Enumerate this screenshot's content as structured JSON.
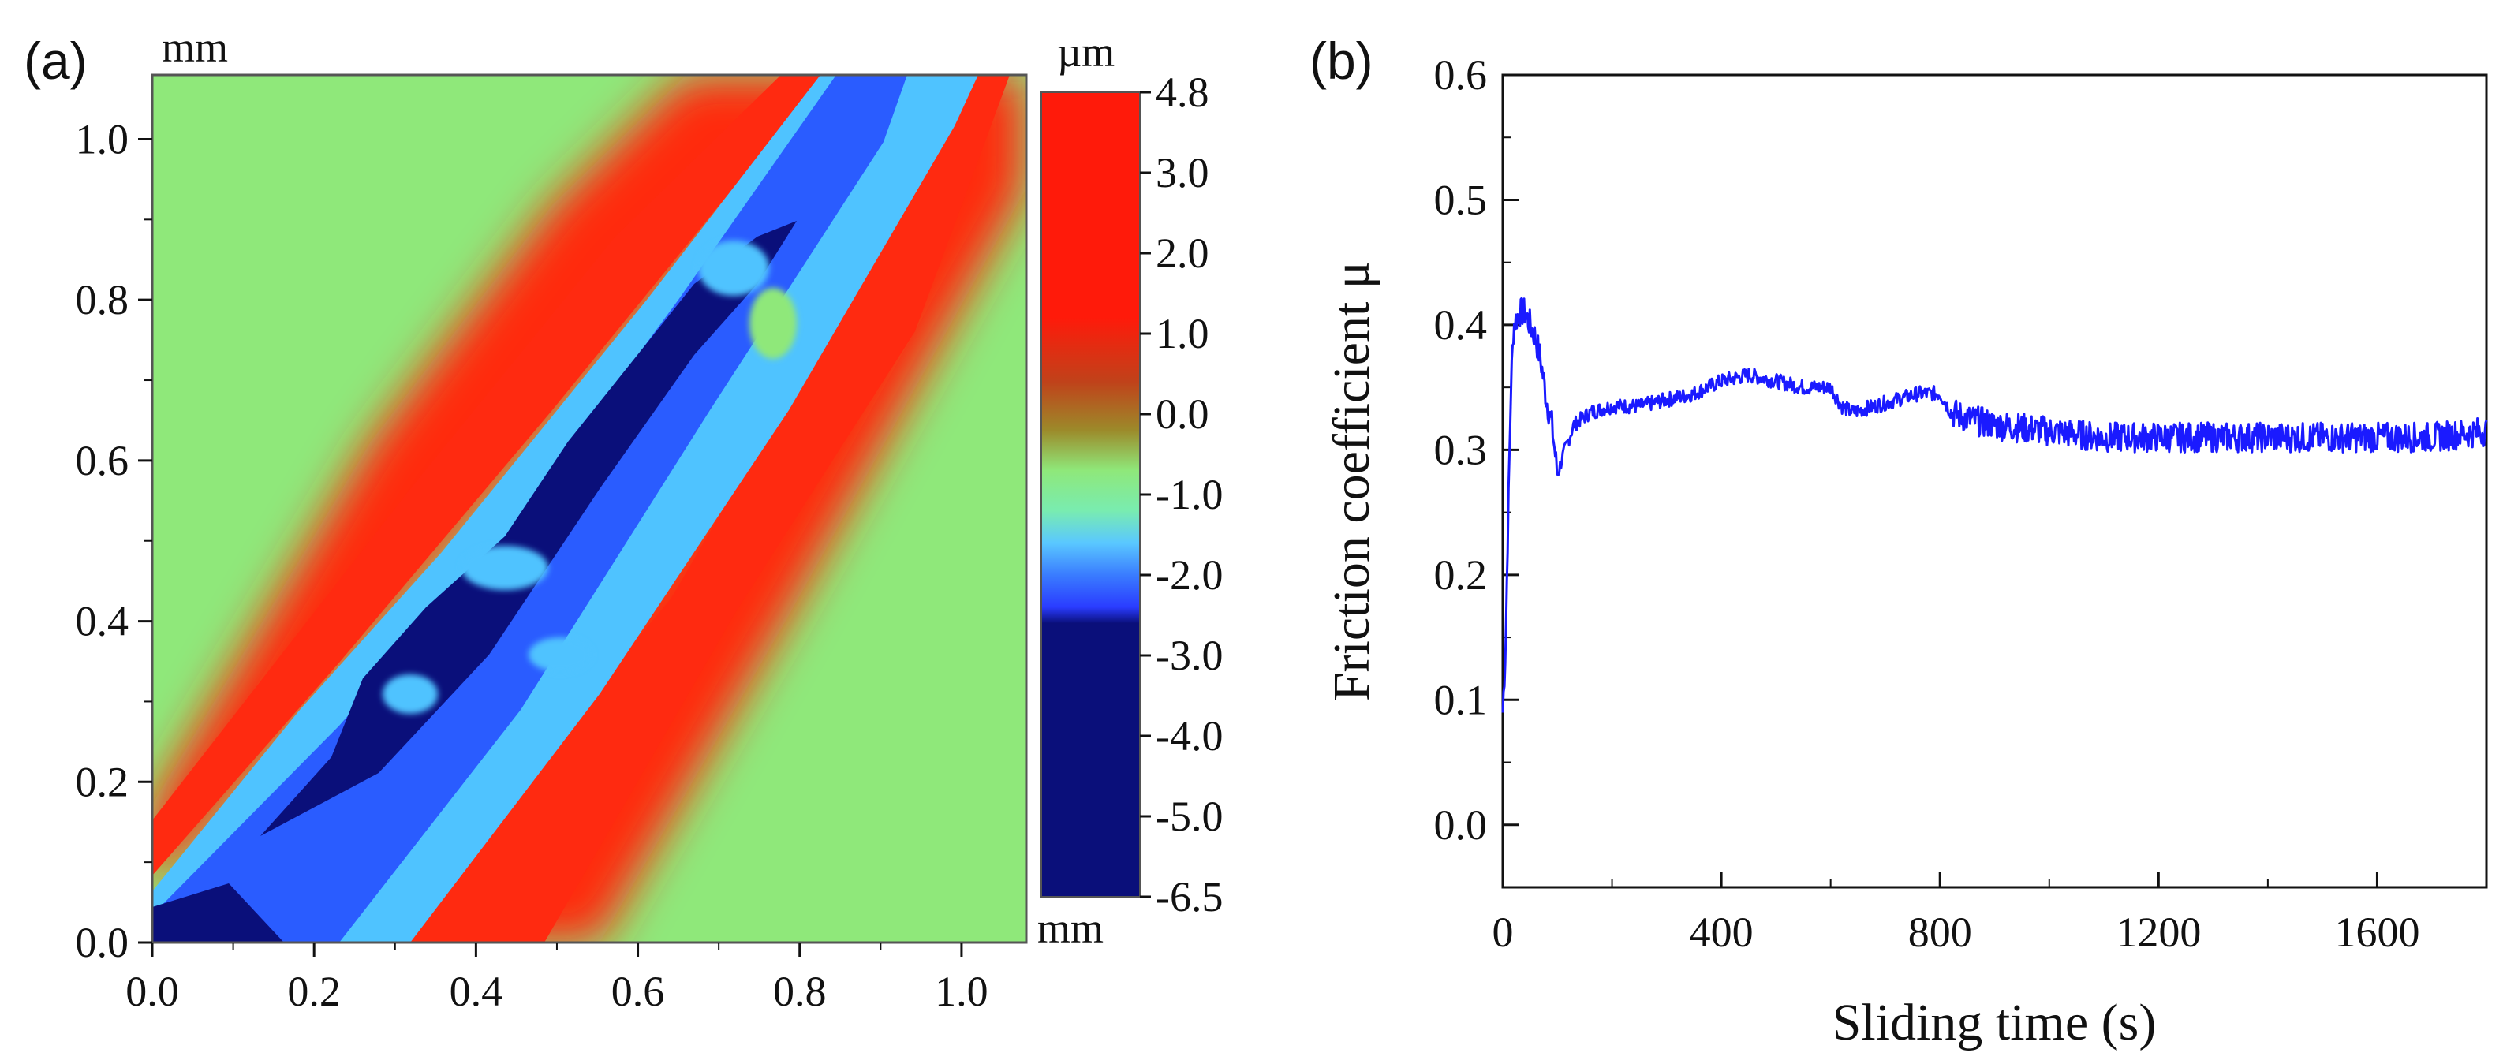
{
  "panel_a": {
    "label": "(a)",
    "unit_top_left": "mm",
    "unit_bottom_right": "mm",
    "colorbar_unit": "µm"
  },
  "panel_b": {
    "label": "(b)"
  },
  "colors": {
    "line": "#1a1aff",
    "surface_base": "#8fe87a",
    "ridge": "#ff2a10",
    "groove_deep": "#0a0f7a",
    "groove_mid": "#2a5cff",
    "groove_shallow": "#4fc3ff"
  },
  "chart_data": [
    {
      "type": "heatmap",
      "title": "(a)",
      "xlabel": "mm",
      "ylabel": "mm",
      "xlim": [
        0.0,
        1.08
      ],
      "ylim": [
        0.0,
        1.08
      ],
      "x_ticks": [
        "0.0",
        "0.2",
        "0.4",
        "0.6",
        "0.8",
        "1.0"
      ],
      "y_ticks": [
        "0.0",
        "0.2",
        "0.4",
        "0.6",
        "0.8",
        "1.0"
      ],
      "colorbar": {
        "unit": "µm",
        "range": [
          -6.5,
          4.8
        ],
        "tick_labels": [
          "4.8",
          "3.0",
          "2.0",
          "1.0",
          "0.0",
          "-1.0",
          "-2.0",
          "-3.0",
          "-4.0",
          "-5.0",
          "-6.5"
        ],
        "tick_values": [
          4.8,
          3.0,
          2.0,
          1.0,
          0.0,
          -1.0,
          -2.0,
          -3.0,
          -4.0,
          -5.0,
          -6.5
        ]
      },
      "description_values": {
        "wear_track_direction": "diagonal from bottom-left to top-right",
        "center_line": [
          [
            0.0,
            0.0
          ],
          [
            1.05,
            1.08
          ]
        ]
      }
    },
    {
      "type": "line",
      "title": "(b)",
      "xlabel": "Sliding time (s)",
      "ylabel": "Friction coefficient μ",
      "xlim": [
        0,
        1800
      ],
      "ylim": [
        -0.05,
        0.6
      ],
      "x_ticks": [
        "0",
        "400",
        "800",
        "1200",
        "1600"
      ],
      "y_ticks": [
        "0.0",
        "0.1",
        "0.2",
        "0.3",
        "0.4",
        "0.5",
        "0.6"
      ],
      "series": [
        {
          "name": "Friction coefficient",
          "x": [
            0,
            5,
            10,
            15,
            20,
            30,
            40,
            50,
            60,
            70,
            80,
            90,
            100,
            110,
            130,
            160,
            200,
            250,
            300,
            350,
            400,
            450,
            500,
            550,
            600,
            620,
            640,
            680,
            720,
            760,
            800,
            820,
            850,
            900,
            1000,
            1100,
            1200,
            1300,
            1400,
            1500,
            1600,
            1700,
            1800
          ],
          "values": [
            0.09,
            0.14,
            0.25,
            0.35,
            0.4,
            0.41,
            0.41,
            0.4,
            0.39,
            0.37,
            0.34,
            0.32,
            0.28,
            0.295,
            0.32,
            0.33,
            0.335,
            0.335,
            0.34,
            0.345,
            0.355,
            0.36,
            0.355,
            0.35,
            0.35,
            0.335,
            0.33,
            0.335,
            0.34,
            0.345,
            0.345,
            0.33,
            0.325,
            0.32,
            0.315,
            0.31,
            0.31,
            0.31,
            0.31,
            0.31,
            0.31,
            0.31,
            0.315
          ]
        }
      ]
    }
  ]
}
